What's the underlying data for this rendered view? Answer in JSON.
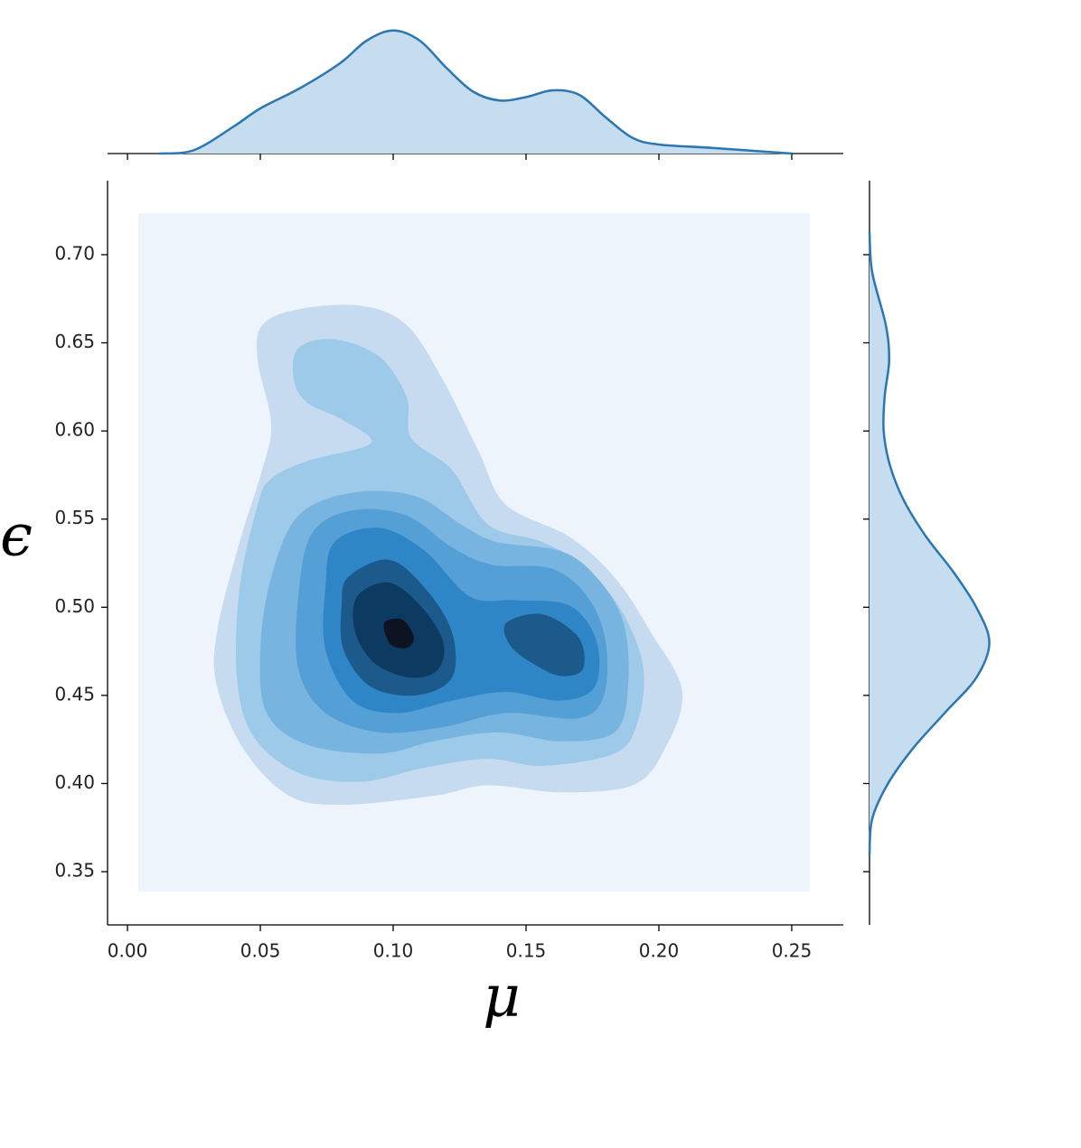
{
  "chart_data": {
    "type": "kde-joint",
    "xlabel": "μ",
    "ylabel": "ϵ",
    "xlim": [
      -0.0075,
      0.2694
    ],
    "ylim": [
      0.3198,
      0.742
    ],
    "xticks": [
      {
        "value": 0,
        "label": "0.00"
      },
      0.05,
      {
        "value": 0.1,
        "label": "0.10"
      },
      0.15,
      {
        "value": 0.2,
        "label": "0.20"
      },
      0.25
    ],
    "yticks": [
      0.35,
      {
        "value": 0.4,
        "label": "0.40"
      },
      0.45,
      {
        "value": 0.5,
        "label": "0.50"
      },
      0.55,
      {
        "value": 0.6,
        "label": "0.60"
      },
      0.65,
      {
        "value": 0.7,
        "label": "0.70"
      }
    ],
    "line_color": "#2a77b2",
    "fill_color": "#c6dcef",
    "contours": [
      {
        "color": "#edf4fb",
        "x": [
          0.004,
          0.2568,
          0.2568,
          0.004
        ],
        "y": [
          0.7236,
          0.7236,
          0.3387,
          0.3387
        ]
      },
      {
        "color": "#c6dbef",
        "x": [
          0.0507,
          0.0643,
          0.0881,
          0.1051,
          0.1187,
          0.1323,
          0.1425,
          0.1663,
          0.1833,
          0.1969,
          0.2088,
          0.202,
          0.1901,
          0.1629,
          0.1357,
          0.1153,
          0.0813,
          0.0609,
          0.0439,
          0.0337,
          0.0337,
          0.0422,
          0.0507,
          0.0541,
          0.049
        ],
        "y": [
          0.66,
          0.669,
          0.671,
          0.66,
          0.629,
          0.588,
          0.558,
          0.54,
          0.517,
          0.486,
          0.452,
          0.419,
          0.399,
          0.395,
          0.399,
          0.393,
          0.388,
          0.393,
          0.419,
          0.455,
          0.486,
          0.537,
          0.578,
          0.604,
          0.64
        ]
      },
      {
        "color": "#9ecae9",
        "x": [
          0.0626,
          0.0643,
          0.0779,
          0.0949,
          0.1051,
          0.1068,
          0.1221,
          0.1357,
          0.1561,
          0.1731,
          0.1867,
          0.1942,
          0.1918,
          0.1833,
          0.1561,
          0.1357,
          0.1119,
          0.0881,
          0.0643,
          0.0473,
          0.0412,
          0.0422,
          0.049,
          0.0541,
          0.0677,
          0.0915,
          0.0813,
          0.0677
        ],
        "y": [
          0.629,
          0.647,
          0.652,
          0.642,
          0.619,
          0.596,
          0.578,
          0.547,
          0.537,
          0.522,
          0.496,
          0.465,
          0.434,
          0.417,
          0.41,
          0.414,
          0.409,
          0.401,
          0.406,
          0.427,
          0.46,
          0.511,
          0.558,
          0.573,
          0.583,
          0.593,
          0.606,
          0.616
        ]
      },
      {
        "color": "#78b4e0",
        "x": [
          0.0643,
          0.0847,
          0.1085,
          0.1255,
          0.1391,
          0.1629,
          0.1765,
          0.1867,
          0.1884,
          0.1833,
          0.1629,
          0.1391,
          0.1153,
          0.0949,
          0.0677,
          0.0524,
          0.05,
          0.0541
        ],
        "y": [
          0.552,
          0.565,
          0.563,
          0.547,
          0.537,
          0.532,
          0.517,
          0.491,
          0.455,
          0.429,
          0.424,
          0.429,
          0.424,
          0.417,
          0.422,
          0.44,
          0.476,
          0.517
        ]
      },
      {
        "color": "#549fd6",
        "x": [
          0.0694,
          0.0847,
          0.1051,
          0.1221,
          0.1374,
          0.1595,
          0.1731,
          0.1799,
          0.1793,
          0.1697,
          0.1425,
          0.1187,
          0.0949,
          0.0745,
          0.0643,
          0.0643
        ],
        "y": [
          0.542,
          0.555,
          0.552,
          0.534,
          0.524,
          0.522,
          0.506,
          0.481,
          0.45,
          0.437,
          0.44,
          0.432,
          0.429,
          0.44,
          0.465,
          0.506
        ]
      },
      {
        "color": "#2f86c6",
        "x": [
          0.0779,
          0.0949,
          0.1119,
          0.1289,
          0.1459,
          0.1663,
          0.1765,
          0.1759,
          0.1629,
          0.1425,
          0.1221,
          0.1017,
          0.0847,
          0.0745,
          0.0745
        ],
        "y": [
          0.537,
          0.545,
          0.532,
          0.506,
          0.504,
          0.501,
          0.481,
          0.455,
          0.447,
          0.452,
          0.447,
          0.44,
          0.447,
          0.476,
          0.511
        ]
      },
      {
        "color": "#1c5a8c",
        "x": [
          0.083,
          0.0983,
          0.1119,
          0.1221,
          0.1221,
          0.1085,
          0.0915,
          0.0813,
          0.0806
        ],
        "y": [
          0.517,
          0.527,
          0.511,
          0.486,
          0.46,
          0.45,
          0.455,
          0.476,
          0.501
        ]
      },
      {
        "color": "#1c5a8c",
        "x": [
          0.1425,
          0.1561,
          0.1697,
          0.1714,
          0.1629,
          0.1527,
          0.1442
        ],
        "y": [
          0.491,
          0.496,
          0.483,
          0.465,
          0.461,
          0.468,
          0.478
        ]
      },
      {
        "color": "#0c3a60",
        "x": [
          0.0864,
          0.0983,
          0.1102,
          0.1187,
          0.117,
          0.1068,
          0.0932,
          0.0857
        ],
        "y": [
          0.506,
          0.514,
          0.501,
          0.481,
          0.465,
          0.46,
          0.468,
          0.486
        ]
      },
      {
        "color": "#0b1420",
        "x": [
          0.0966,
          0.1034,
          0.1078,
          0.1051,
          0.099
        ],
        "y": [
          0.491,
          0.493,
          0.483,
          0.477,
          0.479
        ]
      }
    ],
    "x_marginal": {
      "x": [
        0.012,
        0.025,
        0.04,
        0.05,
        0.065,
        0.08,
        0.09,
        0.1,
        0.11,
        0.12,
        0.13,
        0.14,
        0.15,
        0.16,
        0.17,
        0.18,
        0.19,
        0.2,
        0.22,
        0.25
      ],
      "density": [
        0,
        0.3,
        2.4,
        4.0,
        5.8,
        8.0,
        10.0,
        10.9,
        10.0,
        7.6,
        5.5,
        4.7,
        5.0,
        5.6,
        5.2,
        3.2,
        1.4,
        0.8,
        0.5,
        0
      ],
      "density_lim": [
        0,
        11.2
      ]
    },
    "y_marginal": {
      "y": [
        0.713,
        0.69,
        0.66,
        0.64,
        0.62,
        0.6,
        0.58,
        0.56,
        0.54,
        0.52,
        0.5,
        0.48,
        0.46,
        0.44,
        0.42,
        0.4,
        0.38,
        0.36
      ],
      "density": [
        0,
        0.25,
        1.5,
        1.8,
        1.4,
        1.3,
        1.9,
        3.2,
        5.2,
        7.7,
        9.8,
        11,
        9.8,
        6.9,
        4.0,
        1.7,
        0.25,
        0
      ],
      "density_lim": [
        0,
        11.2
      ]
    }
  }
}
